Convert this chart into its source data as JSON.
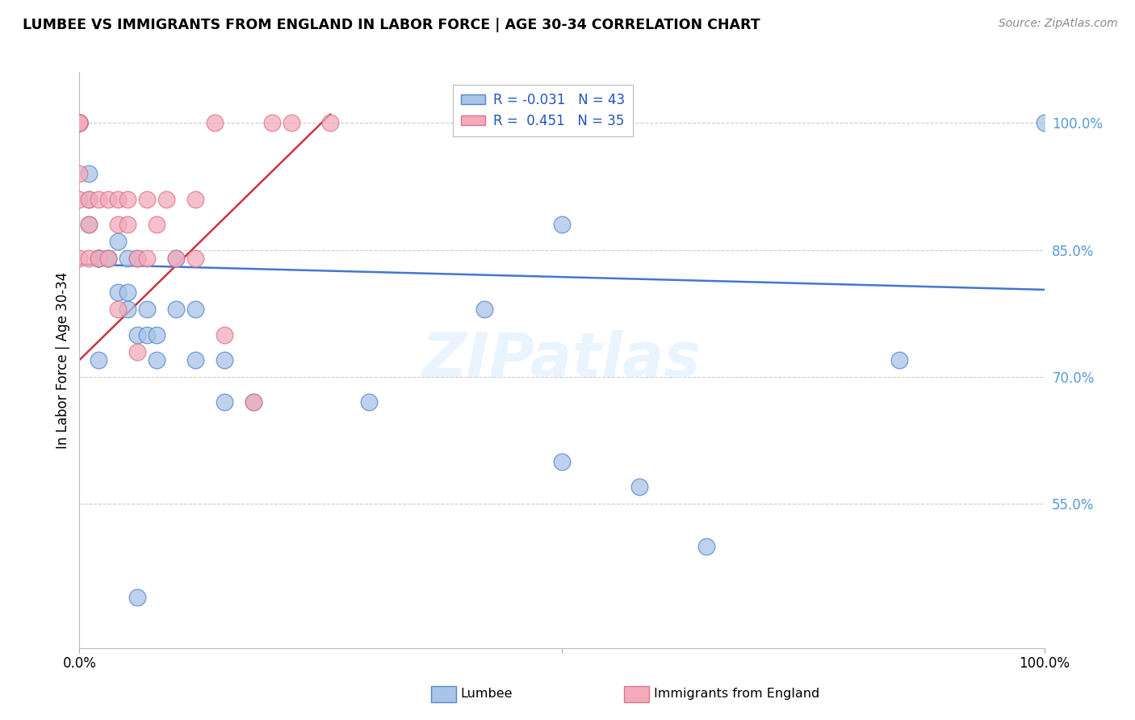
{
  "title": "LUMBEE VS IMMIGRANTS FROM ENGLAND IN LABOR FORCE | AGE 30-34 CORRELATION CHART",
  "source": "Source: ZipAtlas.com",
  "ylabel": "In Labor Force | Age 30-34",
  "watermark": "ZIPatlas",
  "legend_lumbee": "Lumbee",
  "legend_england": "Immigrants from England",
  "R_lumbee": -0.031,
  "N_lumbee": 43,
  "R_england": 0.451,
  "N_england": 35,
  "xlim": [
    0.0,
    1.0
  ],
  "ylim": [
    0.38,
    1.06
  ],
  "ytick_vals": [
    0.55,
    0.7,
    0.85,
    1.0
  ],
  "ytick_labels": [
    "55.0%",
    "70.0%",
    "85.0%",
    "100.0%"
  ],
  "xtick_vals": [
    0.0,
    0.5,
    1.0
  ],
  "xtick_labels": [
    "0.0%",
    "",
    "100.0%"
  ],
  "blue_scatter": "#A8C4E8",
  "pink_scatter": "#F4AABB",
  "blue_edge": "#5588CC",
  "pink_edge": "#DD7788",
  "line_blue_color": "#4477CC",
  "line_pink_color": "#CC3344",
  "grid_color": "#CCCCCC",
  "ytick_color": "#5599DD",
  "lumbee_x": [
    0.0,
    0.0,
    0.0,
    0.0,
    0.0,
    0.0,
    0.01,
    0.01,
    0.01,
    0.02,
    0.02,
    0.02,
    0.02,
    0.03,
    0.03,
    0.04,
    0.04,
    0.05,
    0.05,
    0.05,
    0.06,
    0.06,
    0.07,
    0.07,
    0.08,
    0.08,
    0.1,
    0.1,
    0.12,
    0.12,
    0.15,
    0.15,
    0.18,
    0.3,
    0.42,
    0.5,
    0.5,
    0.58,
    0.65,
    0.85,
    1.0,
    0.02,
    0.06
  ],
  "lumbee_y": [
    1.0,
    1.0,
    1.0,
    1.0,
    1.0,
    1.0,
    0.94,
    0.91,
    0.88,
    0.84,
    0.84,
    0.84,
    0.84,
    0.84,
    0.84,
    0.86,
    0.8,
    0.84,
    0.8,
    0.78,
    0.84,
    0.75,
    0.78,
    0.75,
    0.75,
    0.72,
    0.84,
    0.78,
    0.78,
    0.72,
    0.72,
    0.67,
    0.67,
    0.67,
    0.78,
    0.88,
    0.6,
    0.57,
    0.5,
    0.72,
    1.0,
    0.72,
    0.44
  ],
  "england_x": [
    0.0,
    0.0,
    0.0,
    0.0,
    0.0,
    0.0,
    0.0,
    0.0,
    0.01,
    0.01,
    0.01,
    0.02,
    0.02,
    0.03,
    0.03,
    0.04,
    0.04,
    0.05,
    0.05,
    0.06,
    0.07,
    0.07,
    0.08,
    0.09,
    0.1,
    0.12,
    0.12,
    0.14,
    0.15,
    0.18,
    0.2,
    0.22,
    0.26,
    0.04,
    0.06
  ],
  "england_y": [
    1.0,
    1.0,
    1.0,
    1.0,
    1.0,
    0.94,
    0.91,
    0.84,
    0.91,
    0.88,
    0.84,
    0.91,
    0.84,
    0.91,
    0.84,
    0.91,
    0.88,
    0.91,
    0.88,
    0.84,
    0.91,
    0.84,
    0.88,
    0.91,
    0.84,
    0.91,
    0.84,
    1.0,
    0.75,
    0.67,
    1.0,
    1.0,
    1.0,
    0.78,
    0.73
  ],
  "blue_line_x": [
    0.0,
    1.0
  ],
  "blue_line_y": [
    0.833,
    0.803
  ],
  "pink_line_x": [
    0.0,
    0.26
  ],
  "pink_line_y": [
    0.72,
    1.01
  ]
}
